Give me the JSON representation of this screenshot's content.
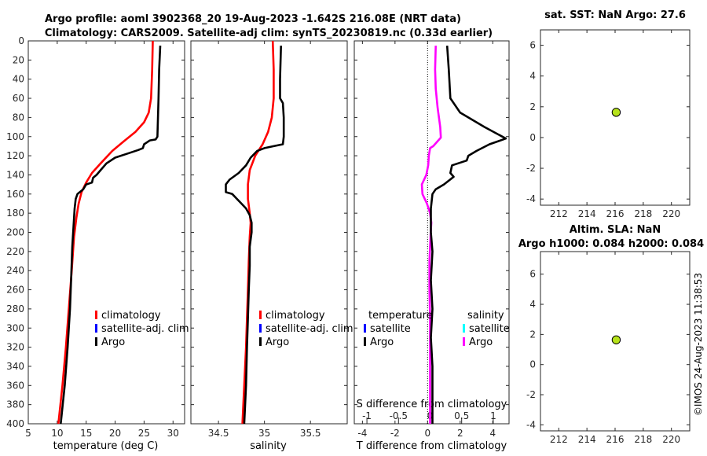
{
  "title": {
    "line1": "Argo profile: aoml 3902368_20 19-Aug-2023 -1.642S 216.08E (NRT data)",
    "line2": "Climatology: CARS2009. Satellite-adj clim: synTS_20230819.nc (0.33d earlier)"
  },
  "timestamp": "©IMOS 24-Aug-2023 11:38:53",
  "colors": {
    "climatology": "#ff0000",
    "argo": "#000000",
    "satellite": "#0000ff",
    "satellite_s": "#00ffff",
    "salinity_diff": "#ff00ff",
    "marker": "#b6e31a"
  },
  "chart_data": [
    {
      "id": "temperature",
      "type": "line",
      "xlabel": "temperature (deg C)",
      "xlim": [
        5,
        32
      ],
      "ylim": [
        0,
        400
      ],
      "yreversed": true,
      "xticks": [
        5,
        10,
        15,
        20,
        25,
        30
      ],
      "yticks": [
        0,
        20,
        40,
        60,
        80,
        100,
        120,
        140,
        160,
        180,
        200,
        220,
        240,
        260,
        280,
        300,
        320,
        340,
        360,
        380,
        400
      ],
      "legend": [
        "climatology",
        "satellite-adj. clim",
        "Argo"
      ],
      "series": [
        {
          "name": "climatology",
          "color": "#ff0000",
          "points": [
            [
              26.5,
              0
            ],
            [
              26.4,
              30
            ],
            [
              26.2,
              60
            ],
            [
              25.8,
              75
            ],
            [
              25.0,
              85
            ],
            [
              23.5,
              95
            ],
            [
              21.5,
              105
            ],
            [
              19.5,
              115
            ],
            [
              17.5,
              128
            ],
            [
              16.0,
              138
            ],
            [
              15.0,
              148
            ],
            [
              14.2,
              158
            ],
            [
              13.7,
              170
            ],
            [
              13.3,
              185
            ],
            [
              12.9,
              205
            ],
            [
              12.5,
              240
            ],
            [
              12.0,
              280
            ],
            [
              11.5,
              320
            ],
            [
              10.9,
              360
            ],
            [
              10.2,
              400
            ]
          ]
        },
        {
          "name": "Argo",
          "color": "#000000",
          "points": [
            [
              27.8,
              5
            ],
            [
              27.6,
              30
            ],
            [
              27.5,
              60
            ],
            [
              27.4,
              80
            ],
            [
              27.3,
              100
            ],
            [
              27.0,
              103
            ],
            [
              26.0,
              104
            ],
            [
              25.5,
              106
            ],
            [
              25.0,
              108
            ],
            [
              24.8,
              112
            ],
            [
              24.0,
              114
            ],
            [
              22.0,
              118
            ],
            [
              20.0,
              122
            ],
            [
              18.5,
              128
            ],
            [
              17.5,
              135
            ],
            [
              16.8,
              140
            ],
            [
              16.2,
              143
            ],
            [
              16.0,
              148
            ],
            [
              15.0,
              150
            ],
            [
              14.5,
              155
            ],
            [
              13.5,
              160
            ],
            [
              13.2,
              165
            ],
            [
              13.0,
              175
            ],
            [
              12.8,
              195
            ],
            [
              12.6,
              215
            ],
            [
              12.4,
              250
            ],
            [
              12.2,
              280
            ],
            [
              11.8,
              320
            ],
            [
              11.3,
              360
            ],
            [
              10.6,
              400
            ]
          ]
        }
      ]
    },
    {
      "id": "salinity",
      "type": "line",
      "xlabel": "salinity",
      "xlim": [
        34.2,
        35.9
      ],
      "ylim": [
        0,
        400
      ],
      "yreversed": true,
      "xticks": [
        34.5,
        35,
        35.5
      ],
      "legend": [
        "climatology",
        "satellite-adj. clim",
        "Argo"
      ],
      "series": [
        {
          "name": "climatology",
          "color": "#ff0000",
          "points": [
            [
              35.09,
              0
            ],
            [
              35.1,
              30
            ],
            [
              35.1,
              60
            ],
            [
              35.08,
              80
            ],
            [
              35.04,
              95
            ],
            [
              34.98,
              108
            ],
            [
              34.9,
              120
            ],
            [
              34.84,
              135
            ],
            [
              34.82,
              150
            ],
            [
              34.82,
              165
            ],
            [
              34.84,
              180
            ],
            [
              34.85,
              190
            ],
            [
              34.84,
              205
            ],
            [
              34.83,
              230
            ],
            [
              34.82,
              260
            ],
            [
              34.81,
              290
            ],
            [
              34.8,
              320
            ],
            [
              34.78,
              360
            ],
            [
              34.76,
              400
            ]
          ]
        },
        {
          "name": "Argo",
          "color": "#000000",
          "points": [
            [
              35.18,
              5
            ],
            [
              35.17,
              40
            ],
            [
              35.17,
              60
            ],
            [
              35.2,
              65
            ],
            [
              35.21,
              80
            ],
            [
              35.21,
              100
            ],
            [
              35.2,
              108
            ],
            [
              35.1,
              110
            ],
            [
              35.0,
              112
            ],
            [
              34.92,
              115
            ],
            [
              34.85,
              122
            ],
            [
              34.8,
              130
            ],
            [
              34.72,
              138
            ],
            [
              34.62,
              145
            ],
            [
              34.58,
              150
            ],
            [
              34.58,
              158
            ],
            [
              34.65,
              160
            ],
            [
              34.7,
              165
            ],
            [
              34.75,
              170
            ],
            [
              34.8,
              175
            ],
            [
              34.84,
              182
            ],
            [
              34.86,
              190
            ],
            [
              34.86,
              200
            ],
            [
              34.84,
              215
            ],
            [
              34.84,
              235
            ],
            [
              34.83,
              260
            ],
            [
              34.82,
              290
            ],
            [
              34.81,
              320
            ],
            [
              34.8,
              360
            ],
            [
              34.78,
              400
            ]
          ]
        }
      ]
    },
    {
      "id": "difference",
      "type": "line",
      "xlabel": "T difference from climatology",
      "top_axis_label": "S difference from climatology",
      "xlim": [
        -4.5,
        5.0
      ],
      "xticks": [
        -4,
        -2,
        0,
        2,
        4
      ],
      "top_xlim": [
        -1.2,
        1.25
      ],
      "top_xticks": [
        "-1",
        "-0.5",
        "0",
        "0.5",
        "1"
      ],
      "ylim": [
        0,
        400
      ],
      "yreversed": true,
      "legend_temperature_title": "temperature",
      "legend_salinity_title": "salinity",
      "legend_temperature": [
        "satellite",
        "Argo"
      ],
      "legend_salinity": [
        "satellite",
        "Argo"
      ],
      "series": [
        {
          "name": "T difference (Argo)",
          "color": "#000000",
          "points": [
            [
              1.2,
              5
            ],
            [
              1.3,
              30
            ],
            [
              1.4,
              60
            ],
            [
              2.0,
              75
            ],
            [
              3.5,
              90
            ],
            [
              4.8,
              102
            ],
            [
              3.8,
              108
            ],
            [
              3.0,
              115
            ],
            [
              2.5,
              120
            ],
            [
              2.4,
              125
            ],
            [
              1.5,
              130
            ],
            [
              1.4,
              138
            ],
            [
              1.6,
              142
            ],
            [
              1.0,
              150
            ],
            [
              0.5,
              155
            ],
            [
              0.3,
              160
            ],
            [
              0.2,
              175
            ],
            [
              0.2,
              200
            ],
            [
              0.3,
              220
            ],
            [
              0.2,
              250
            ],
            [
              0.3,
              280
            ],
            [
              0.2,
              310
            ],
            [
              0.3,
              340
            ],
            [
              0.3,
              370
            ],
            [
              0.3,
              400
            ]
          ]
        },
        {
          "name": "S difference (Argo)",
          "color": "#ff00ff",
          "points": [
            [
              0.09,
              5
            ],
            [
              0.08,
              30
            ],
            [
              0.09,
              50
            ],
            [
              0.12,
              70
            ],
            [
              0.16,
              90
            ],
            [
              0.17,
              101
            ],
            [
              0.05,
              110
            ],
            [
              0.0,
              112
            ],
            [
              -0.02,
              120
            ],
            [
              -0.03,
              130
            ],
            [
              -0.06,
              140
            ],
            [
              -0.13,
              150
            ],
            [
              -0.12,
              160
            ],
            [
              -0.05,
              170
            ],
            [
              0.0,
              180
            ],
            [
              0.02,
              190
            ],
            [
              0.01,
              200
            ],
            [
              -0.01,
              230
            ],
            [
              -0.01,
              260
            ],
            [
              0.0,
              290
            ],
            [
              0.0,
              320
            ],
            [
              0.0,
              360
            ],
            [
              0.0,
              400
            ]
          ]
        }
      ]
    },
    {
      "id": "sst",
      "type": "scatter",
      "title": "sat. SST: NaN Argo: 27.6",
      "xlim": [
        210.7,
        221.3
      ],
      "ylim": [
        -4.4,
        7.0
      ],
      "xticks": [
        212,
        214,
        216,
        218,
        220
      ],
      "yticks": [
        -4,
        -2,
        0,
        2,
        4,
        6
      ],
      "points": [
        [
          216.08,
          1.64
        ]
      ]
    },
    {
      "id": "sla",
      "type": "scatter",
      "title_line1": "Altim. SLA: NaN",
      "title_line2": "Argo h1000: 0.084 h2000: 0.084",
      "xlim": [
        210.7,
        221.3
      ],
      "ylim": [
        -4.4,
        7.5
      ],
      "xticks": [
        212,
        214,
        216,
        218,
        220
      ],
      "yticks": [
        -4,
        -2,
        0,
        2,
        4,
        6
      ],
      "points": [
        [
          216.08,
          1.64
        ]
      ]
    }
  ]
}
